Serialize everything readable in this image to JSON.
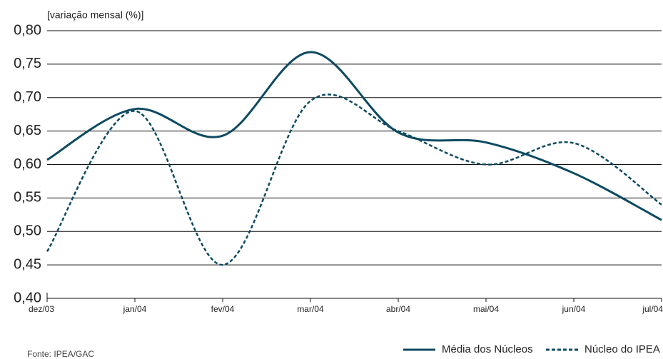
{
  "chart_data": {
    "type": "line",
    "ylabel": "[variação mensal (%)]",
    "source": "Fonte: IPEA/GAC",
    "categories": [
      "dez/03",
      "jan/04",
      "fev/04",
      "mar/04",
      "abr/04",
      "mai/04",
      "jun/04",
      "jul/04"
    ],
    "series": [
      {
        "name": "Média dos Núcleos",
        "color": "#0e4a62",
        "dash": "solid",
        "values": [
          0.607,
          0.683,
          0.643,
          0.768,
          0.648,
          0.633,
          0.587,
          0.517
        ]
      },
      {
        "name": "Núcleo do IPEA",
        "color": "#0e4a62",
        "dash": "dashed",
        "values": [
          0.47,
          0.68,
          0.45,
          0.695,
          0.65,
          0.6,
          0.632,
          0.54
        ]
      }
    ],
    "ylim": [
      0.4,
      0.8
    ],
    "yticks": [
      {
        "value": 0.4,
        "label": "0,40"
      },
      {
        "value": 0.45,
        "label": "0,45"
      },
      {
        "value": 0.5,
        "label": "0,50"
      },
      {
        "value": 0.55,
        "label": "0,55"
      },
      {
        "value": 0.6,
        "label": "0,60"
      },
      {
        "value": 0.65,
        "label": "0,65"
      },
      {
        "value": 0.7,
        "label": "0,70"
      },
      {
        "value": 0.75,
        "label": "0,75"
      },
      {
        "value": 0.8,
        "label": "0,80"
      }
    ],
    "grid": true
  }
}
